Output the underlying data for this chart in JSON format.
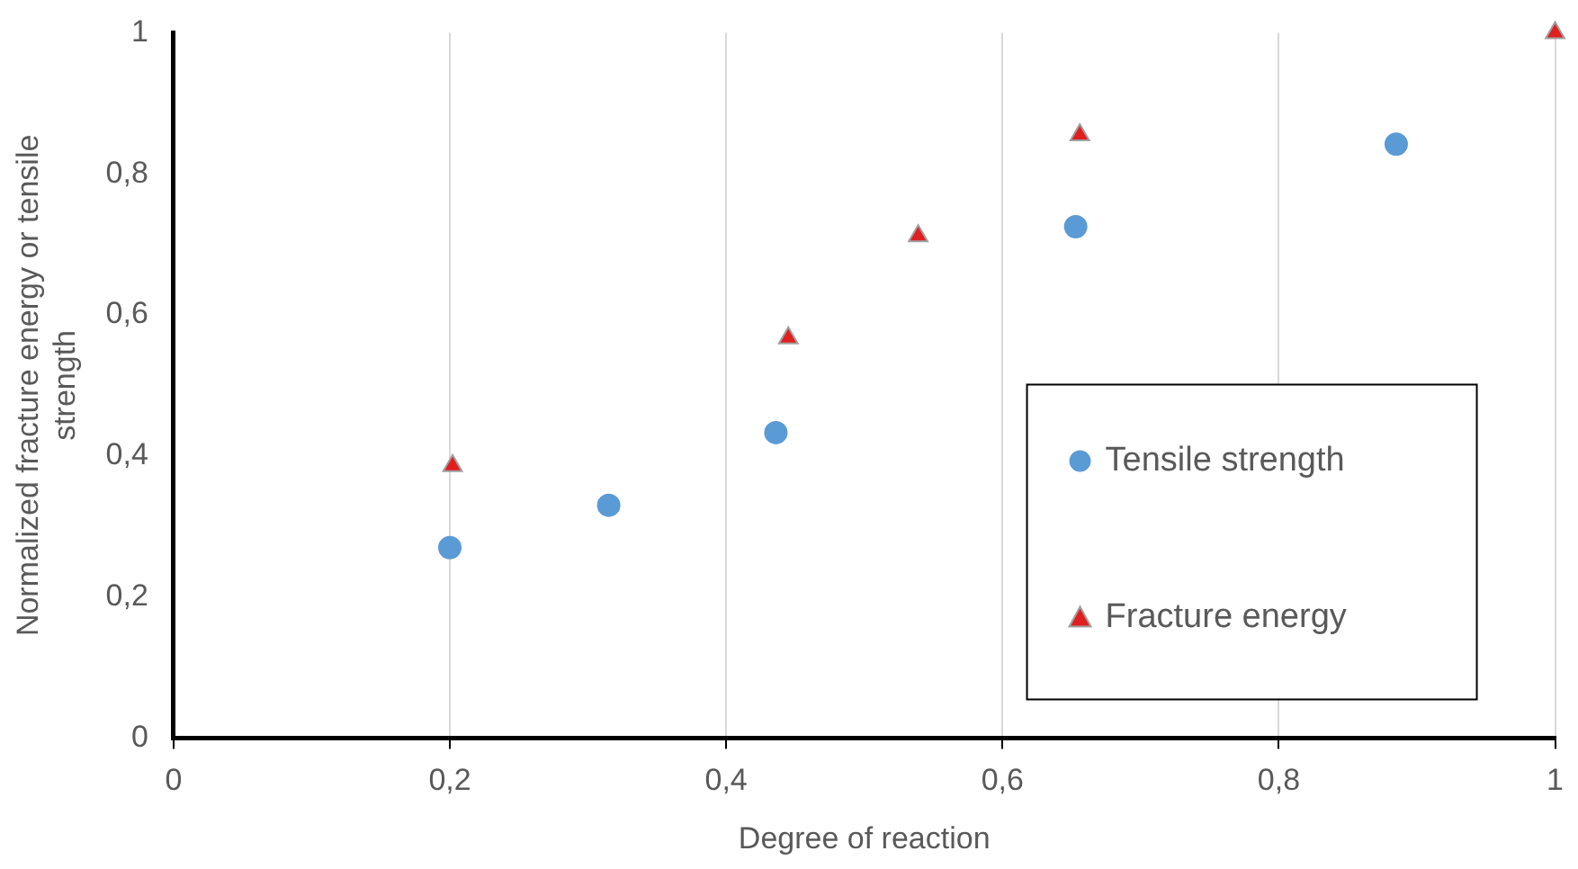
{
  "chart_data": {
    "type": "scatter",
    "xlabel": "Degree of reaction",
    "ylabel": "Normalized fracture energy or tensile strength",
    "xlim": [
      0,
      1
    ],
    "xticks": [
      {
        "value": 0,
        "label": "0"
      },
      {
        "value": 0.2,
        "label": "0,2"
      },
      {
        "value": 0.4,
        "label": "0,4"
      },
      {
        "value": 0.6,
        "label": "0,6"
      },
      {
        "value": 0.8,
        "label": "0,8"
      },
      {
        "value": 1,
        "label": "1"
      }
    ],
    "ylim": [
      0,
      1
    ],
    "yticks": [
      {
        "value": 0,
        "label": "0"
      },
      {
        "value": 0.2,
        "label": "0,2"
      },
      {
        "value": 0.4,
        "label": "0,4"
      },
      {
        "value": 0.6,
        "label": "0,6"
      },
      {
        "value": 0.8,
        "label": "0,8"
      },
      {
        "value": 1,
        "label": "1"
      }
    ],
    "grid": "x",
    "legend": "bottom right",
    "series": [
      {
        "name": "Tensile strength",
        "color": "#5b9bd5",
        "marker": "circle",
        "x": [
          0.2,
          0.315,
          0.436,
          0.653,
          0.885
        ],
        "values": [
          0.27,
          0.33,
          0.433,
          0.725,
          0.842
        ]
      },
      {
        "name": "Fracture energy",
        "color": "#e02020",
        "marker": "triangle",
        "x": [
          0.202,
          0.445,
          0.539,
          0.656,
          1
        ],
        "values": [
          0.386,
          0.567,
          0.712,
          0.855,
          1
        ]
      }
    ]
  }
}
